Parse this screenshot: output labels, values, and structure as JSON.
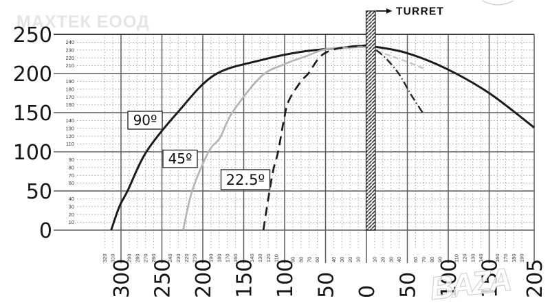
{
  "watermarks": {
    "top_left": "МАХТЕК ЕООД",
    "bottom_right": "BAZA"
  },
  "turret_label": "TURRET",
  "curve_labels": [
    {
      "text": "90º"
    },
    {
      "text": "45º"
    },
    {
      "text": "22.5º"
    }
  ],
  "chart_data": {
    "type": "line",
    "title": "",
    "xlabel": "",
    "ylabel": "",
    "x_axis": {
      "unit": "horizontal distance from turret (negative = left of turret)",
      "range": [
        -320,
        205
      ],
      "major_ticks": [
        -300,
        -250,
        -200,
        -150,
        -100,
        -50,
        0,
        50,
        100,
        150,
        205
      ],
      "minor_ticks": [
        -320,
        -310,
        -290,
        -280,
        -270,
        -260,
        -240,
        -230,
        -220,
        -210,
        -190,
        -180,
        -170,
        -160,
        -140,
        -130,
        -120,
        -110,
        -90,
        -80,
        -70,
        -60,
        -40,
        -30,
        -20,
        -10,
        10,
        20,
        30,
        40,
        60,
        70,
        80,
        90,
        110,
        120,
        130,
        140,
        160,
        170,
        180,
        190
      ],
      "tick_label_style": "absolute value, rotated 90"
    },
    "y_axis": {
      "unit": "height",
      "range": [
        0,
        250
      ],
      "major_ticks": [
        250,
        200,
        150,
        100,
        50,
        0
      ],
      "minor_ticks": [
        240,
        230,
        220,
        210,
        190,
        180,
        170,
        160,
        140,
        130,
        120,
        110,
        90,
        80,
        70,
        60,
        40,
        30,
        20,
        10
      ]
    },
    "grid": "solid major lines every 50, dotted minor lines every 10",
    "legend_position": "boxed labels placed on curves",
    "series": [
      {
        "id": "curve-90",
        "name": "90º",
        "line": "solid",
        "color": "#1b1b1b",
        "width": 3,
        "dash": "",
        "points": [
          [
            -312,
            0
          ],
          [
            -302,
            30
          ],
          [
            -292,
            50
          ],
          [
            -269,
            100
          ],
          [
            -231,
            150
          ],
          [
            -186,
            198
          ],
          [
            -129,
            217
          ],
          [
            -78,
            228
          ],
          [
            -28,
            233
          ],
          [
            -11,
            235
          ],
          [
            11,
            234
          ],
          [
            50,
            226
          ],
          [
            98,
            206
          ],
          [
            150,
            175
          ],
          [
            205,
            131
          ]
        ]
      },
      {
        "id": "curve-45",
        "name": "45º",
        "line": "solid",
        "color": "#b5b5b5",
        "width": 2.7,
        "dash": "",
        "points": [
          [
            -224,
            0
          ],
          [
            -213,
            50
          ],
          [
            -193,
            100
          ],
          [
            -179,
            118
          ],
          [
            -164,
            150
          ],
          [
            -129,
            196
          ],
          [
            -100,
            212
          ],
          [
            -74,
            222
          ],
          [
            -50,
            231
          ],
          [
            -19,
            233
          ],
          [
            0,
            234
          ]
        ]
      },
      {
        "id": "curve-45-right",
        "name": "45º right of turret",
        "line": "dashed fading",
        "color": "#c6c6c6",
        "width": 2.4,
        "dash": "8 5",
        "points": [
          [
            12,
            229
          ],
          [
            31,
            222
          ],
          [
            52,
            214
          ],
          [
            71,
            206
          ]
        ]
      },
      {
        "id": "curve-22",
        "name": "22.5º",
        "line": "dashed",
        "color": "#1b1b1b",
        "width": 2.7,
        "dash": "13 8",
        "points": [
          [
            -126,
            0
          ],
          [
            -120,
            40
          ],
          [
            -114,
            76
          ],
          [
            -108,
            100
          ],
          [
            -101,
            140
          ],
          [
            -95,
            165
          ],
          [
            -80,
            190
          ],
          [
            -71,
            200
          ],
          [
            -57,
            221
          ],
          [
            -42,
            230
          ],
          [
            -22,
            234
          ],
          [
            0,
            236
          ]
        ]
      },
      {
        "id": "curve-22-right",
        "name": "22.5º right of turret",
        "line": "dash-dot",
        "color": "#222222",
        "width": 2.4,
        "dash": "11 4 1.5 4",
        "points": [
          [
            12,
            230
          ],
          [
            25,
            218
          ],
          [
            40,
            199
          ],
          [
            55,
            172
          ],
          [
            70,
            148
          ]
        ]
      }
    ],
    "annotations": [
      {
        "text": "TURRET",
        "x": 0,
        "type": "hatched vertical bar with arrow label"
      }
    ]
  }
}
